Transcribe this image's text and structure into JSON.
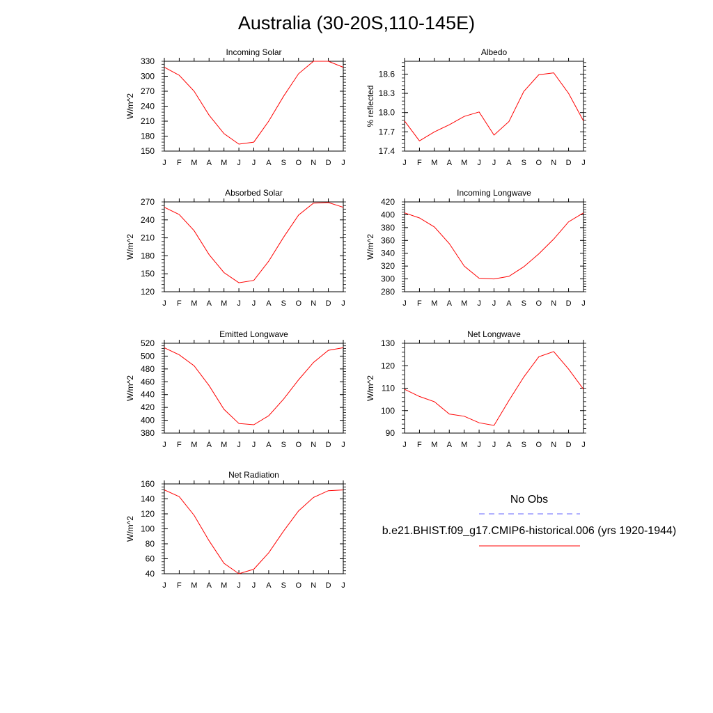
{
  "title": "Australia (30-20S,110-145E)",
  "legend": {
    "obs_label": "No Obs",
    "obs_color": "#6666ff",
    "model_label": "b.e21.BHIST.f09_g17.CMIP6-historical.006 (yrs 1920-1944)",
    "model_color": "#ff0000"
  },
  "chart_data": [
    {
      "type": "line",
      "title": "Incoming Solar",
      "ylabel": "W/m^2",
      "categories": [
        "J",
        "F",
        "M",
        "A",
        "M",
        "J",
        "J",
        "A",
        "S",
        "O",
        "N",
        "D",
        "J"
      ],
      "ylim": [
        150,
        330
      ],
      "yticks": [
        "150",
        "180",
        "210",
        "240",
        "270",
        "300",
        "330"
      ],
      "series": [
        {
          "values": [
            318,
            302,
            270,
            222,
            185,
            164,
            168,
            210,
            260,
            305,
            330,
            330,
            318
          ]
        }
      ]
    },
    {
      "type": "line",
      "title": "Albedo",
      "ylabel": "% reflected",
      "categories": [
        "J",
        "F",
        "M",
        "A",
        "M",
        "J",
        "J",
        "A",
        "S",
        "O",
        "N",
        "D",
        "J"
      ],
      "ylim": [
        17.4,
        18.8
      ],
      "yticks": [
        "17.4",
        "17.7",
        "18.0",
        "18.3",
        "18.6"
      ],
      "series": [
        {
          "values": [
            17.87,
            17.56,
            17.7,
            17.81,
            17.94,
            18.01,
            17.65,
            17.86,
            18.33,
            18.59,
            18.62,
            18.3,
            17.87
          ]
        }
      ]
    },
    {
      "type": "line",
      "title": "Absorbed Solar",
      "ylabel": "W/m^2",
      "categories": [
        "J",
        "F",
        "M",
        "A",
        "M",
        "J",
        "J",
        "A",
        "S",
        "O",
        "N",
        "D",
        "J"
      ],
      "ylim": [
        120,
        270
      ],
      "yticks": [
        "120",
        "150",
        "180",
        "210",
        "240",
        "270"
      ],
      "series": [
        {
          "values": [
            261,
            249,
            222,
            182,
            152,
            135,
            139,
            171,
            211,
            248,
            268,
            269,
            261
          ]
        }
      ]
    },
    {
      "type": "line",
      "title": "Incoming Longwave",
      "ylabel": "W/m^2",
      "categories": [
        "J",
        "F",
        "M",
        "A",
        "M",
        "J",
        "J",
        "A",
        "S",
        "O",
        "N",
        "D",
        "J"
      ],
      "ylim": [
        280,
        420
      ],
      "yticks": [
        "280",
        "300",
        "320",
        "340",
        "360",
        "380",
        "400",
        "420"
      ],
      "series": [
        {
          "values": [
            403,
            395,
            381,
            355,
            320,
            301,
            300,
            304,
            319,
            339,
            362,
            389,
            403
          ]
        }
      ]
    },
    {
      "type": "line",
      "title": "Emitted Longwave",
      "ylabel": "W/m^2",
      "categories": [
        "J",
        "F",
        "M",
        "A",
        "M",
        "J",
        "J",
        "A",
        "S",
        "O",
        "N",
        "D",
        "J"
      ],
      "ylim": [
        380,
        520
      ],
      "yticks": [
        "380",
        "400",
        "420",
        "440",
        "460",
        "480",
        "500",
        "520"
      ],
      "series": [
        {
          "values": [
            513,
            502,
            485,
            454,
            417,
            395,
            393,
            407,
            433,
            463,
            490,
            509,
            513
          ]
        }
      ]
    },
    {
      "type": "line",
      "title": "Net Longwave",
      "ylabel": "W/m^2",
      "categories": [
        "J",
        "F",
        "M",
        "A",
        "M",
        "J",
        "J",
        "A",
        "S",
        "O",
        "N",
        "D",
        "J"
      ],
      "ylim": [
        90,
        130
      ],
      "yticks": [
        "90",
        "100",
        "110",
        "120",
        "130"
      ],
      "series": [
        {
          "values": [
            109.5,
            106.3,
            104.0,
            98.5,
            97.5,
            94.6,
            93.4,
            104.5,
            115.0,
            124.0,
            126.3,
            118.5,
            109.5
          ]
        }
      ]
    },
    {
      "type": "line",
      "title": "Net Radiation",
      "ylabel": "W/m^2",
      "categories": [
        "J",
        "F",
        "M",
        "A",
        "M",
        "J",
        "J",
        "A",
        "S",
        "O",
        "N",
        "D",
        "J"
      ],
      "ylim": [
        40,
        160
      ],
      "yticks": [
        "40",
        "60",
        "80",
        "100",
        "120",
        "140",
        "160"
      ],
      "series": [
        {
          "values": [
            152,
            143,
            118,
            84,
            54,
            40,
            46,
            68,
            97,
            124,
            142,
            151,
            152
          ]
        }
      ]
    }
  ]
}
